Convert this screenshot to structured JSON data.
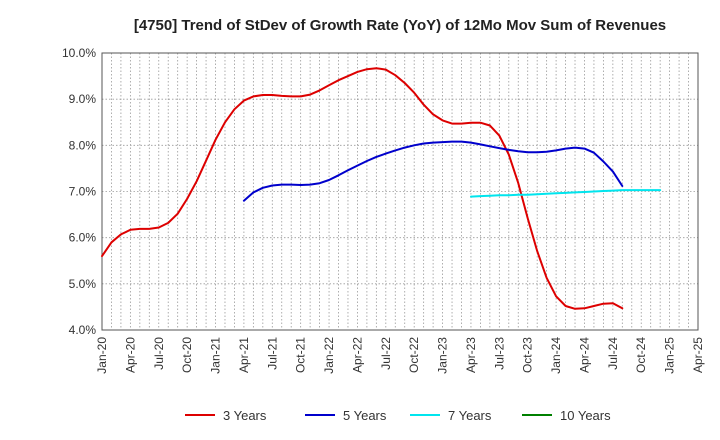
{
  "chart_data": {
    "type": "line",
    "title": "[4750]  Trend of StDev of Growth Rate (YoY) of 12Mo Mov Sum of Revenues",
    "xlabel": "",
    "ylabel": "",
    "ylim": [
      4.0,
      10.0
    ],
    "y_ticks": [
      4.0,
      5.0,
      6.0,
      7.0,
      8.0,
      9.0,
      10.0
    ],
    "y_tick_labels": [
      "4.0%",
      "5.0%",
      "6.0%",
      "7.0%",
      "8.0%",
      "9.0%",
      "10.0%"
    ],
    "x_tick_labels": [
      "Jan-20",
      "Apr-20",
      "Jul-20",
      "Oct-20",
      "Jan-21",
      "Apr-21",
      "Jul-21",
      "Oct-21",
      "Jan-22",
      "Apr-22",
      "Jul-22",
      "Oct-22",
      "Jan-23",
      "Apr-23",
      "Jul-23",
      "Oct-23",
      "Jan-24",
      "Apr-24",
      "Jul-24",
      "Oct-24",
      "Jan-25",
      "Apr-25"
    ],
    "x_start": "Jan-20",
    "grid": true,
    "legend_position": "bottom",
    "series": [
      {
        "name": "3 Years",
        "color": "#dd0000",
        "start_month_index": 0,
        "values": [
          5.6,
          5.9,
          6.07,
          6.17,
          6.19,
          6.19,
          6.22,
          6.32,
          6.52,
          6.84,
          7.22,
          7.67,
          8.12,
          8.5,
          8.78,
          8.97,
          9.06,
          9.09,
          9.09,
          9.07,
          9.06,
          9.06,
          9.1,
          9.19,
          9.3,
          9.41,
          9.5,
          9.59,
          9.65,
          9.67,
          9.64,
          9.52,
          9.35,
          9.14,
          8.88,
          8.67,
          8.54,
          8.47,
          8.47,
          8.49,
          8.49,
          8.43,
          8.21,
          7.8,
          7.18,
          6.42,
          5.71,
          5.13,
          4.73,
          4.52,
          4.46,
          4.47,
          4.52,
          4.57,
          4.58,
          4.47
        ]
      },
      {
        "name": "5 Years",
        "color": "#0000cc",
        "start_month_index": 15,
        "values": [
          6.8,
          6.98,
          7.08,
          7.13,
          7.15,
          7.15,
          7.14,
          7.15,
          7.18,
          7.25,
          7.35,
          7.46,
          7.56,
          7.66,
          7.75,
          7.82,
          7.89,
          7.95,
          8.0,
          8.04,
          8.06,
          8.07,
          8.08,
          8.08,
          8.06,
          8.02,
          7.98,
          7.94,
          7.9,
          7.87,
          7.85,
          7.85,
          7.86,
          7.89,
          7.93,
          7.95,
          7.93,
          7.84,
          7.65,
          7.43,
          7.12
        ]
      },
      {
        "name": "7 Years",
        "color": "#00e5ee",
        "start_month_index": 39,
        "values": [
          6.89,
          6.9,
          6.91,
          6.92,
          6.92,
          6.93,
          6.93,
          6.94,
          6.95,
          6.96,
          6.97,
          6.98,
          6.99,
          7.0,
          7.01,
          7.02,
          7.03,
          7.03,
          7.03,
          7.03,
          7.03
        ]
      },
      {
        "name": "10 Years",
        "color": "#008000",
        "start_month_index": 0,
        "values": []
      }
    ]
  }
}
